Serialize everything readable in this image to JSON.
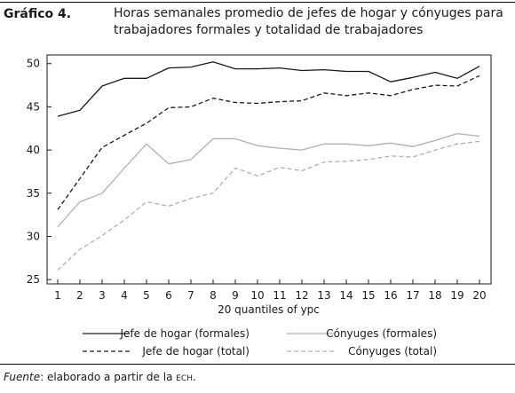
{
  "figure": {
    "label": "Gráfico 4.",
    "title": "Horas semanales promedio de jefes de hogar y cónyuges para trabajadores formales y totalidad de trabajadores"
  },
  "source": {
    "prefix": "Fuente",
    "text": ": elaborado a partir de la ",
    "abbr": "ECH",
    "suffix": "."
  },
  "chart_data": {
    "type": "line",
    "title": "",
    "xlabel": "20 quantiles of ypc",
    "ylabel": "",
    "x": [
      1,
      2,
      3,
      4,
      5,
      6,
      7,
      8,
      9,
      10,
      11,
      12,
      13,
      14,
      15,
      16,
      17,
      18,
      19,
      20
    ],
    "xticks": [
      "1",
      "2",
      "3",
      "4",
      "5",
      "6",
      "7",
      "8",
      "9",
      "10",
      "11",
      "12",
      "13",
      "14",
      "15",
      "16",
      "17",
      "18",
      "19",
      "20"
    ],
    "ylim": [
      24.5,
      51
    ],
    "yticks": [
      25,
      30,
      35,
      40,
      45,
      50
    ],
    "grid": false,
    "legend_position": "bottom",
    "series": [
      {
        "name": "Jefe de hogar (formales)",
        "color": "#1a1a1a",
        "dash": "solid",
        "values": [
          43.9,
          44.6,
          47.4,
          48.3,
          48.3,
          49.5,
          49.6,
          50.2,
          49.4,
          49.4,
          49.5,
          49.2,
          49.3,
          49.1,
          49.1,
          47.9,
          48.4,
          49.0,
          48.3,
          49.7
        ]
      },
      {
        "name": "Cónyuges (formales)",
        "color": "#b0b0b0",
        "dash": "solid",
        "values": [
          31.1,
          34.0,
          35.0,
          37.9,
          40.7,
          38.4,
          38.9,
          41.3,
          41.3,
          40.5,
          40.2,
          40.0,
          40.7,
          40.7,
          40.5,
          40.8,
          40.4,
          41.1,
          41.9,
          41.6
        ]
      },
      {
        "name": "Jefe de hogar (total)",
        "color": "#1a1a1a",
        "dash": "dashed",
        "values": [
          33.1,
          36.7,
          40.3,
          41.7,
          43.1,
          44.9,
          45.0,
          46.0,
          45.5,
          45.4,
          45.6,
          45.7,
          46.6,
          46.3,
          46.6,
          46.3,
          47.0,
          47.5,
          47.4,
          48.6
        ]
      },
      {
        "name": "Cónyuges (total)",
        "color": "#b0b0b0",
        "dash": "dashed",
        "values": [
          26.1,
          28.5,
          30.1,
          31.9,
          34.0,
          33.5,
          34.4,
          35.0,
          37.9,
          37.0,
          38.0,
          37.6,
          38.6,
          38.7,
          38.9,
          39.3,
          39.2,
          40.0,
          40.7,
          41.0
        ]
      }
    ]
  }
}
